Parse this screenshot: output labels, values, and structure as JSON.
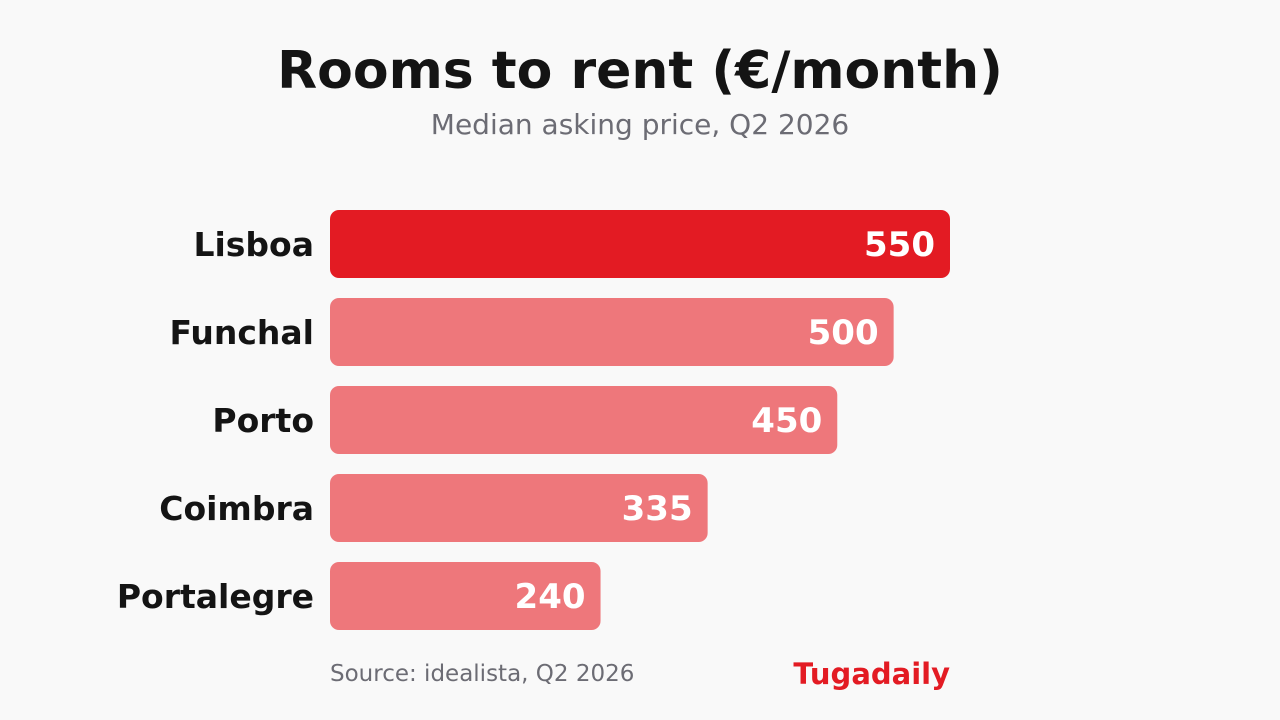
{
  "header": {
    "title": "Rooms to rent (€/month)",
    "subtitle": "Median asking price, Q2 2026"
  },
  "footer": {
    "source": "Source: idealista, Q2 2026",
    "brand": "Tugadaily"
  },
  "colors": {
    "highlight": "#e31b23",
    "bar": "#ee777b",
    "value_text": "#ffffff",
    "label_text": "#141414",
    "brand": "#e31b23"
  },
  "chart_data": {
    "type": "bar",
    "orientation": "horizontal",
    "title": "Rooms to rent (€/month)",
    "subtitle": "Median asking price, Q2 2026",
    "categories": [
      "Lisboa",
      "Funchal",
      "Porto",
      "Coimbra",
      "Portalegre"
    ],
    "values": [
      550,
      500,
      450,
      335,
      240
    ],
    "highlighted": [
      "Lisboa"
    ],
    "xlim": [
      0,
      550
    ],
    "grid": false,
    "legend": "none",
    "data_labels": true
  }
}
